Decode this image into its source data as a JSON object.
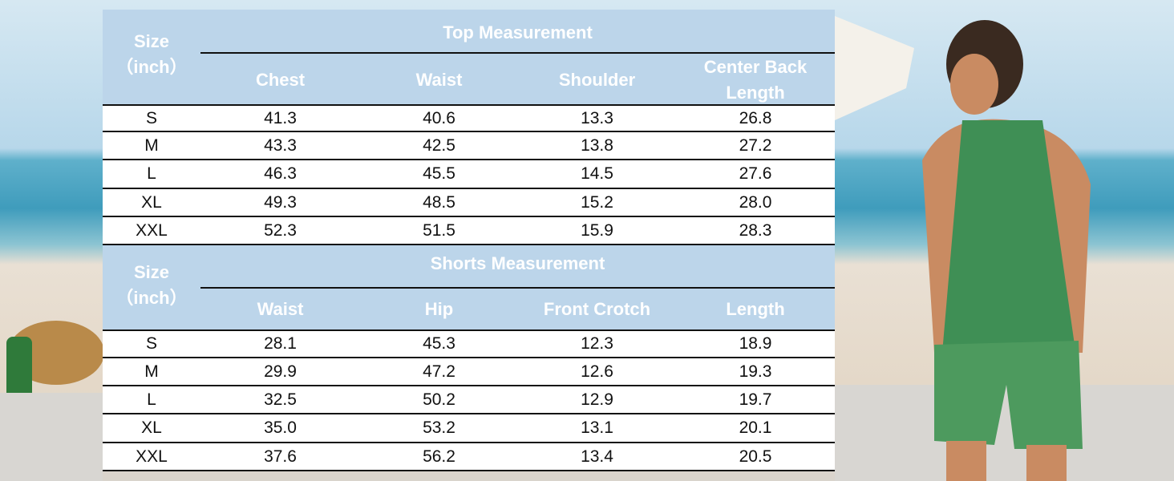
{
  "tables": [
    {
      "size_label": [
        "Size",
        "（inch）"
      ],
      "title": "Top Measurement",
      "columns": [
        "Chest",
        "Waist",
        "Shoulder",
        "Center Back Length"
      ],
      "rows": [
        [
          "S",
          "41.3",
          "40.6",
          "13.3",
          "26.8"
        ],
        [
          "M",
          "43.3",
          "42.5",
          "13.8",
          "27.2"
        ],
        [
          "L",
          "46.3",
          "45.5",
          "14.5",
          "27.6"
        ],
        [
          "XL",
          "49.3",
          "48.5",
          "15.2",
          "28.0"
        ],
        [
          "XXL",
          "52.3",
          "51.5",
          "15.9",
          "28.3"
        ]
      ]
    },
    {
      "size_label": [
        "Size",
        "（inch）"
      ],
      "title": "Shorts Measurement",
      "columns": [
        "Waist",
        "Hip",
        "Front Crotch",
        "Length"
      ],
      "rows": [
        [
          "S",
          "28.1",
          "45.3",
          "12.3",
          "18.9"
        ],
        [
          "M",
          "29.9",
          "47.2",
          "12.6",
          "19.3"
        ],
        [
          "L",
          "32.5",
          "50.2",
          "12.9",
          "19.7"
        ],
        [
          "XL",
          "35.0",
          "53.2",
          "13.1",
          "20.1"
        ],
        [
          "XXL",
          "37.6",
          "56.2",
          "13.4",
          "20.5"
        ]
      ]
    }
  ]
}
